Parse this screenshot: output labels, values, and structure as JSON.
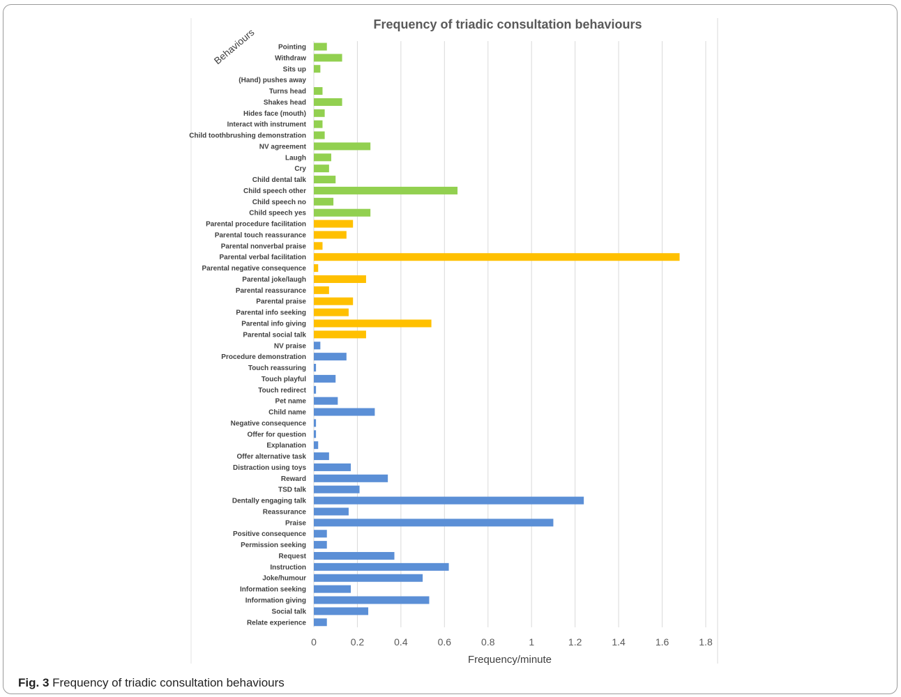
{
  "figure": {
    "caption_label": "Fig. 3",
    "caption_text": "Frequency of triadic consultation behaviours"
  },
  "chart_data": {
    "type": "bar",
    "orientation": "horizontal",
    "title": "Frequency of triadic consultation behaviours",
    "ylabel": "Behaviours",
    "xlabel": "Frequency/minute",
    "xlim": [
      0,
      1.8
    ],
    "xticks": [
      "0",
      "0.2",
      "0.4",
      "0.6",
      "0.8",
      "1",
      "1.2",
      "1.4",
      "1.6",
      "1.8"
    ],
    "grid": "vertical",
    "legend": "none",
    "group_colors": {
      "child": "#92d050",
      "parent": "#ffc000",
      "dentist": "#5b8fd6"
    },
    "categories": [
      "Pointing",
      "Withdraw",
      "Sits up",
      "(Hand) pushes away",
      "Turns head",
      "Shakes head",
      "Hides face (mouth)",
      "Interact with instrument",
      "Child toothbrushing demonstration",
      "NV agreement",
      "Laugh",
      "Cry",
      "Child dental talk",
      "Child speech other",
      "Child speech no",
      "Child speech yes",
      "Parental procedure facilitation",
      "Parental touch reassurance",
      "Parental nonverbal praise",
      "Parental verbal facilitation",
      "Parental negative consequence",
      "Parental joke/laugh",
      "Parental reassurance",
      "Parental praise",
      "Parental info seeking",
      "Parental info giving",
      "Parental social talk",
      "NV praise",
      "Procedure demonstration",
      "Touch reassuring",
      "Touch playful",
      "Touch redirect",
      "Pet name",
      "Child name",
      "Negative consequence",
      "Offer for question",
      "Explanation",
      "Offer alternative task",
      "Distraction using toys",
      "Reward",
      "TSD talk",
      "Dentally engaging talk",
      "Reassurance",
      "Praise",
      "Positive consequence",
      "Permission seeking",
      "Request",
      "Instruction",
      "Joke/humour",
      "Information seeking",
      "Information giving",
      "Social talk",
      "Relate experience"
    ],
    "values": [
      0.06,
      0.13,
      0.03,
      0.0,
      0.04,
      0.13,
      0.05,
      0.04,
      0.05,
      0.26,
      0.08,
      0.07,
      0.1,
      0.66,
      0.09,
      0.26,
      0.18,
      0.15,
      0.04,
      1.68,
      0.02,
      0.24,
      0.07,
      0.18,
      0.16,
      0.54,
      0.24,
      0.03,
      0.15,
      0.01,
      0.1,
      0.01,
      0.11,
      0.28,
      0.01,
      0.01,
      0.02,
      0.07,
      0.17,
      0.34,
      0.21,
      1.24,
      0.16,
      1.1,
      0.06,
      0.06,
      0.37,
      0.62,
      0.5,
      0.17,
      0.53,
      0.25,
      0.06
    ],
    "groups": [
      "child",
      "child",
      "child",
      "child",
      "child",
      "child",
      "child",
      "child",
      "child",
      "child",
      "child",
      "child",
      "child",
      "child",
      "child",
      "child",
      "parent",
      "parent",
      "parent",
      "parent",
      "parent",
      "parent",
      "parent",
      "parent",
      "parent",
      "parent",
      "parent",
      "dentist",
      "dentist",
      "dentist",
      "dentist",
      "dentist",
      "dentist",
      "dentist",
      "dentist",
      "dentist",
      "dentist",
      "dentist",
      "dentist",
      "dentist",
      "dentist",
      "dentist",
      "dentist",
      "dentist",
      "dentist",
      "dentist",
      "dentist",
      "dentist",
      "dentist",
      "dentist",
      "dentist",
      "dentist",
      "dentist"
    ]
  }
}
